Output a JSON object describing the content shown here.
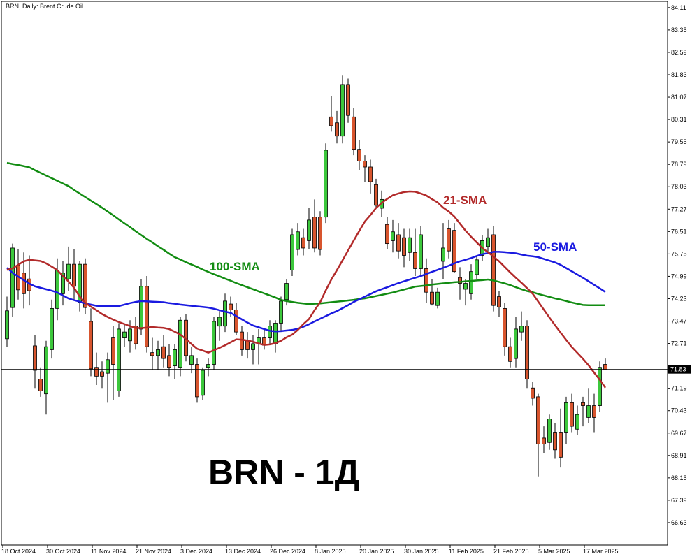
{
  "chart_data": {
    "type": "candlestick",
    "title": "BRN, Daily:  Brent Crude Oil",
    "annotation": "BRN - 1Д",
    "categories": [
      "18 Oct 2024",
      null,
      null,
      null,
      null,
      null,
      null,
      null,
      "30 Oct 2024",
      null,
      null,
      null,
      null,
      null,
      null,
      null,
      "11 Nov 2024",
      null,
      null,
      null,
      null,
      null,
      null,
      null,
      "21 Nov 2024",
      null,
      null,
      null,
      null,
      null,
      null,
      null,
      "3 Dec 2024",
      null,
      null,
      null,
      null,
      null,
      null,
      null,
      "13 Dec 2024",
      null,
      null,
      null,
      null,
      null,
      null,
      null,
      "26 Dec 2024",
      null,
      null,
      null,
      null,
      null,
      null,
      null,
      "8 Jan 2025",
      null,
      null,
      null,
      null,
      null,
      null,
      null,
      "20 Jan 2025",
      null,
      null,
      null,
      null,
      null,
      null,
      null,
      "30 Jan 2025",
      null,
      null,
      null,
      null,
      null,
      null,
      null,
      "11 Feb 2025",
      null,
      null,
      null,
      null,
      null,
      null,
      null,
      "21 Feb 2025",
      null,
      null,
      null,
      null,
      null,
      null,
      null,
      "5 Mar 2025",
      null,
      null,
      null,
      null,
      null,
      null,
      null,
      "17 Mar 2025",
      null,
      null,
      null
    ],
    "candles": {
      "open": [
        72.87,
        73.93,
        75.36,
        75.1,
        74.9,
        72.63,
        71.5,
        71.0,
        72.5,
        73.9,
        74.4,
        74.9,
        75.4,
        74.1,
        75.4,
        73.46,
        71.9,
        71.75,
        71.7,
        72.9,
        71.1,
        72.9,
        72.8,
        73.3,
        73.2,
        74.65,
        72.4,
        72.3,
        72.6,
        72.3,
        71.95,
        71.9,
        73.5,
        72.0,
        72.0,
        70.95,
        71.9,
        72.0,
        73.3,
        73.3,
        74.05,
        73.85,
        73.1,
        72.8,
        72.5,
        72.7,
        72.9,
        72.9,
        72.7,
        73.4,
        74.2,
        75.2,
        75.9,
        76.3,
        76.2,
        77.0,
        77.0,
        77.0,
        80.4,
        80.2,
        79.75,
        81.5,
        80.4,
        79.3,
        78.9,
        78.7,
        78.1,
        77.3,
        76.75,
        76.2,
        76.4,
        76.3,
        75.8,
        75.8,
        75.25,
        75.25,
        74.45,
        74.0,
        75.5,
        76.6,
        76.55,
        74.95,
        74.55,
        74.4,
        75.05,
        75.7,
        76.0,
        76.4,
        74.3,
        73.9,
        72.6,
        72.2,
        73.1,
        73.3,
        71.2,
        70.9,
        69.5,
        69.35,
        69.7,
        69.7,
        69.7,
        70.7,
        69.8,
        70.7,
        70.2,
        70.6,
        70.6,
        72.0
      ],
      "high": [
        74.3,
        76.1,
        75.9,
        75.8,
        75.7,
        73.0,
        71.9,
        72.8,
        74.2,
        75.6,
        75.5,
        76.0,
        75.9,
        75.5,
        75.6,
        73.9,
        72.4,
        72.1,
        72.4,
        73.3,
        73.4,
        73.4,
        73.5,
        73.6,
        74.9,
        75.0,
        72.9,
        72.8,
        73.0,
        72.7,
        72.7,
        73.6,
        73.7,
        72.6,
        72.2,
        71.9,
        72.2,
        73.6,
        73.8,
        74.4,
        74.3,
        74.1,
        73.3,
        73.1,
        73.0,
        73.2,
        73.2,
        73.5,
        73.5,
        74.3,
        74.9,
        76.6,
        76.8,
        76.6,
        77.3,
        77.6,
        77.2,
        79.5,
        81.1,
        80.6,
        81.8,
        81.7,
        80.7,
        79.6,
        79.1,
        78.95,
        78.3,
        77.9,
        77.0,
        76.9,
        76.8,
        76.6,
        76.6,
        76.6,
        76.7,
        75.6,
        74.9,
        74.6,
        76.8,
        76.9,
        76.8,
        75.3,
        74.9,
        75.4,
        75.7,
        76.4,
        76.6,
        76.7,
        74.5,
        74.1,
        72.9,
        73.6,
        73.8,
        73.5,
        71.4,
        71.0,
        69.9,
        70.3,
        70.0,
        70.5,
        70.9,
        71.0,
        70.6,
        70.9,
        71.2,
        71.0,
        72.1,
        72.2
      ],
      "low": [
        72.6,
        73.6,
        74.2,
        73.9,
        74.0,
        71.2,
        70.9,
        70.3,
        72.2,
        73.5,
        74.0,
        74.5,
        74.2,
        73.8,
        73.7,
        71.6,
        71.3,
        71.2,
        70.7,
        70.8,
        70.9,
        72.6,
        72.4,
        72.5,
        73.0,
        72.4,
        71.8,
        71.8,
        71.9,
        71.6,
        71.5,
        71.6,
        72.1,
        71.7,
        70.7,
        70.8,
        71.6,
        71.8,
        72.8,
        73.1,
        73.6,
        73.0,
        72.3,
        72.2,
        72.0,
        72.0,
        72.5,
        72.7,
        72.4,
        73.1,
        74.0,
        75.0,
        75.7,
        75.7,
        75.9,
        75.8,
        75.7,
        76.8,
        79.9,
        79.5,
        79.5,
        80.2,
        79.1,
        78.6,
        78.2,
        77.8,
        77.3,
        77.0,
        75.9,
        75.8,
        75.6,
        75.3,
        75.5,
        75.0,
        75.0,
        74.1,
        74.0,
        73.9,
        74.9,
        75.6,
        75.1,
        74.2,
        74.0,
        74.2,
        74.9,
        75.5,
        75.8,
        73.8,
        73.6,
        72.3,
        71.9,
        71.9,
        72.8,
        71.2,
        70.6,
        68.2,
        69.0,
        69.1,
        68.8,
        68.5,
        69.3,
        69.7,
        69.6,
        69.9,
        70.0,
        69.7,
        70.4,
        71.8
      ],
      "close": [
        73.82,
        75.95,
        74.53,
        74.4,
        74.5,
        71.8,
        71.1,
        72.6,
        73.9,
        75.2,
        75.1,
        75.4,
        74.65,
        75.4,
        73.93,
        71.85,
        71.6,
        71.6,
        72.16,
        72.0,
        73.2,
        73.1,
        73.2,
        72.7,
        74.65,
        72.6,
        72.3,
        72.5,
        72.2,
        71.9,
        72.5,
        73.5,
        72.3,
        72.3,
        70.9,
        71.8,
        72.0,
        73.46,
        73.6,
        74.15,
        73.85,
        73.1,
        72.5,
        72.5,
        72.7,
        72.9,
        72.65,
        73.3,
        73.4,
        74.15,
        74.75,
        76.4,
        76.5,
        75.95,
        76.9,
        75.95,
        75.9,
        79.27,
        80.1,
        79.75,
        81.5,
        80.45,
        79.3,
        78.9,
        78.7,
        78.2,
        77.4,
        77.6,
        76.1,
        76.5,
        75.85,
        75.7,
        76.3,
        75.25,
        76.4,
        74.45,
        74.05,
        74.45,
        75.95,
        75.85,
        75.15,
        74.75,
        74.75,
        75.15,
        75.55,
        76.2,
        76.3,
        74.0,
        73.95,
        72.6,
        72.1,
        73.2,
        73.3,
        71.5,
        70.85,
        69.3,
        69.3,
        70.15,
        69.1,
        68.85,
        70.7,
        69.9,
        70.3,
        70.6,
        70.6,
        70.2,
        71.9,
        71.83
      ],
      "up_color": "#3cc83c",
      "down_color": "#d8552e"
    },
    "series": [
      {
        "name": "100-SMA",
        "color": "#128c12",
        "values": [
          78.84,
          78.8,
          78.77,
          78.73,
          78.69,
          78.59,
          78.5,
          78.41,
          78.32,
          78.23,
          78.14,
          78.05,
          77.92,
          77.8,
          77.68,
          77.56,
          77.44,
          77.32,
          77.19,
          77.06,
          76.92,
          76.79,
          76.66,
          76.52,
          76.39,
          76.26,
          76.14,
          76.01,
          75.89,
          75.76,
          75.64,
          75.56,
          75.47,
          75.39,
          75.31,
          75.22,
          75.14,
          75.06,
          74.99,
          74.91,
          74.84,
          74.76,
          74.69,
          74.62,
          74.55,
          74.48,
          74.41,
          74.34,
          74.27,
          74.19,
          74.15,
          74.12,
          74.09,
          74.07,
          74.05,
          74.06,
          74.07,
          74.09,
          74.11,
          74.13,
          74.15,
          74.17,
          74.19,
          74.22,
          74.24,
          74.28,
          74.32,
          74.36,
          74.4,
          74.44,
          74.49,
          74.54,
          74.59,
          74.64,
          74.66,
          74.68,
          74.71,
          74.73,
          74.75,
          74.77,
          74.79,
          74.8,
          74.82,
          74.83,
          74.85,
          74.86,
          74.88,
          74.85,
          74.8,
          74.75,
          74.69,
          74.62,
          74.55,
          74.49,
          74.45,
          74.39,
          74.34,
          74.29,
          74.24,
          74.2,
          74.15,
          74.1,
          74.06,
          74.02,
          74.01,
          74.01,
          74.01,
          74.01
        ]
      },
      {
        "name": "50-SMA",
        "color": "#1a1ae0",
        "values": [
          75.28,
          75.11,
          74.98,
          74.86,
          74.74,
          74.65,
          74.6,
          74.55,
          74.5,
          74.44,
          74.34,
          74.24,
          74.18,
          74.13,
          74.07,
          74.03,
          73.99,
          73.98,
          73.98,
          73.98,
          73.98,
          74.03,
          74.08,
          74.12,
          74.15,
          74.14,
          74.13,
          74.12,
          74.11,
          74.08,
          74.06,
          74.03,
          74.01,
          73.99,
          73.97,
          73.95,
          73.93,
          73.89,
          73.84,
          73.79,
          73.75,
          73.64,
          73.53,
          73.42,
          73.32,
          73.26,
          73.2,
          73.14,
          73.12,
          73.13,
          73.15,
          73.17,
          73.21,
          73.28,
          73.36,
          73.46,
          73.55,
          73.64,
          73.73,
          73.81,
          73.91,
          74.01,
          74.12,
          74.21,
          74.3,
          74.39,
          74.48,
          74.55,
          74.62,
          74.69,
          74.76,
          74.82,
          74.88,
          74.94,
          75.0,
          75.07,
          75.14,
          75.21,
          75.28,
          75.35,
          75.43,
          75.5,
          75.55,
          75.61,
          75.68,
          75.74,
          75.78,
          75.82,
          75.82,
          75.81,
          75.79,
          75.77,
          75.73,
          75.69,
          75.67,
          75.64,
          75.58,
          75.52,
          75.46,
          75.38,
          75.27,
          75.16,
          75.05,
          74.94,
          74.82,
          74.7,
          74.58,
          74.46
        ]
      },
      {
        "name": "21-SMA",
        "color": "#b22a2a",
        "values": [
          75.21,
          75.26,
          75.38,
          75.5,
          75.55,
          75.53,
          75.51,
          75.43,
          75.32,
          75.2,
          75.0,
          74.81,
          74.6,
          74.3,
          74.09,
          73.96,
          73.84,
          73.71,
          73.61,
          73.52,
          73.44,
          73.37,
          73.3,
          73.24,
          73.23,
          73.25,
          73.27,
          73.25,
          73.24,
          73.2,
          73.11,
          73.01,
          72.86,
          72.69,
          72.53,
          72.47,
          72.4,
          72.48,
          72.56,
          72.65,
          72.75,
          72.85,
          72.84,
          72.81,
          72.77,
          72.71,
          72.66,
          72.68,
          72.72,
          72.8,
          72.92,
          73.01,
          73.17,
          73.37,
          73.54,
          73.84,
          74.11,
          74.51,
          74.88,
          75.2,
          75.53,
          75.87,
          76.2,
          76.53,
          76.85,
          77.07,
          77.31,
          77.48,
          77.62,
          77.74,
          77.8,
          77.85,
          77.87,
          77.86,
          77.8,
          77.73,
          77.61,
          77.5,
          77.32,
          77.19,
          77.02,
          76.78,
          76.54,
          76.33,
          76.14,
          75.95,
          75.81,
          75.66,
          75.5,
          75.31,
          75.12,
          74.94,
          74.77,
          74.59,
          74.4,
          74.13,
          73.86,
          73.59,
          73.33,
          73.08,
          72.83,
          72.59,
          72.39,
          72.19,
          71.97,
          71.72,
          71.48,
          71.21
        ]
      }
    ],
    "price_line": 71.83,
    "ylim": [
      65.87,
      84.32
    ],
    "yticks": [
      84.11,
      83.35,
      82.59,
      81.83,
      81.07,
      80.31,
      79.55,
      78.79,
      78.03,
      77.27,
      76.51,
      75.75,
      74.99,
      74.23,
      73.47,
      72.71,
      71.19,
      70.43,
      69.67,
      68.91,
      68.15,
      67.39,
      66.63
    ]
  }
}
